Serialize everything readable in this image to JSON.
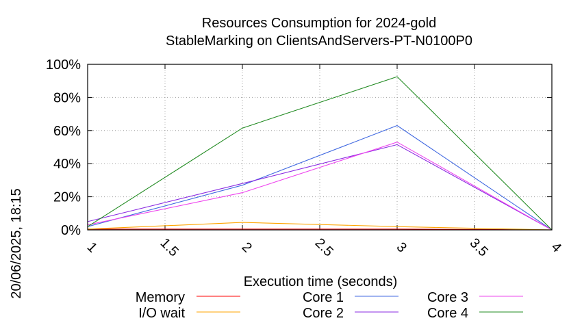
{
  "chart_data": {
    "type": "line",
    "title": "Resources Consumption for 2024-gold",
    "subtitle": "StableMarking on ClientsAndServers-PT-N0100P0",
    "xlabel": "Execution time (seconds)",
    "ylabel": "",
    "side_label": "20/06/2025, 18:15",
    "xlim": [
      1,
      4
    ],
    "ylim": [
      0,
      100
    ],
    "x_ticks": [
      "1",
      "1.5",
      "2",
      "2.5",
      "3",
      "3.5",
      "4"
    ],
    "x_tick_values": [
      1,
      1.5,
      2,
      2.5,
      3,
      3.5,
      4
    ],
    "y_ticks": [
      "0%",
      "20%",
      "40%",
      "60%",
      "80%",
      "100%"
    ],
    "y_tick_values": [
      0,
      20,
      40,
      60,
      80,
      100
    ],
    "grid": true,
    "legend_position": "bottom",
    "x": [
      1,
      2,
      3,
      4
    ],
    "series": [
      {
        "name": "Memory",
        "color": "#ff0000",
        "values": [
          0.5,
          0.5,
          0.5,
          0
        ]
      },
      {
        "name": "I/O wait",
        "color": "#ffa500",
        "values": [
          0.5,
          4.5,
          2,
          0
        ]
      },
      {
        "name": "Core 1",
        "color": "#4169e1",
        "values": [
          2,
          27,
          63,
          0
        ]
      },
      {
        "name": "Core 2",
        "color": "#8a2be2",
        "values": [
          5,
          28,
          51.5,
          0
        ]
      },
      {
        "name": "Core 3",
        "color": "#ee44ee",
        "values": [
          3,
          22.5,
          53,
          0
        ]
      },
      {
        "name": "Core 4",
        "color": "#228b22",
        "values": [
          2,
          61.5,
          92.5,
          0
        ]
      }
    ]
  }
}
